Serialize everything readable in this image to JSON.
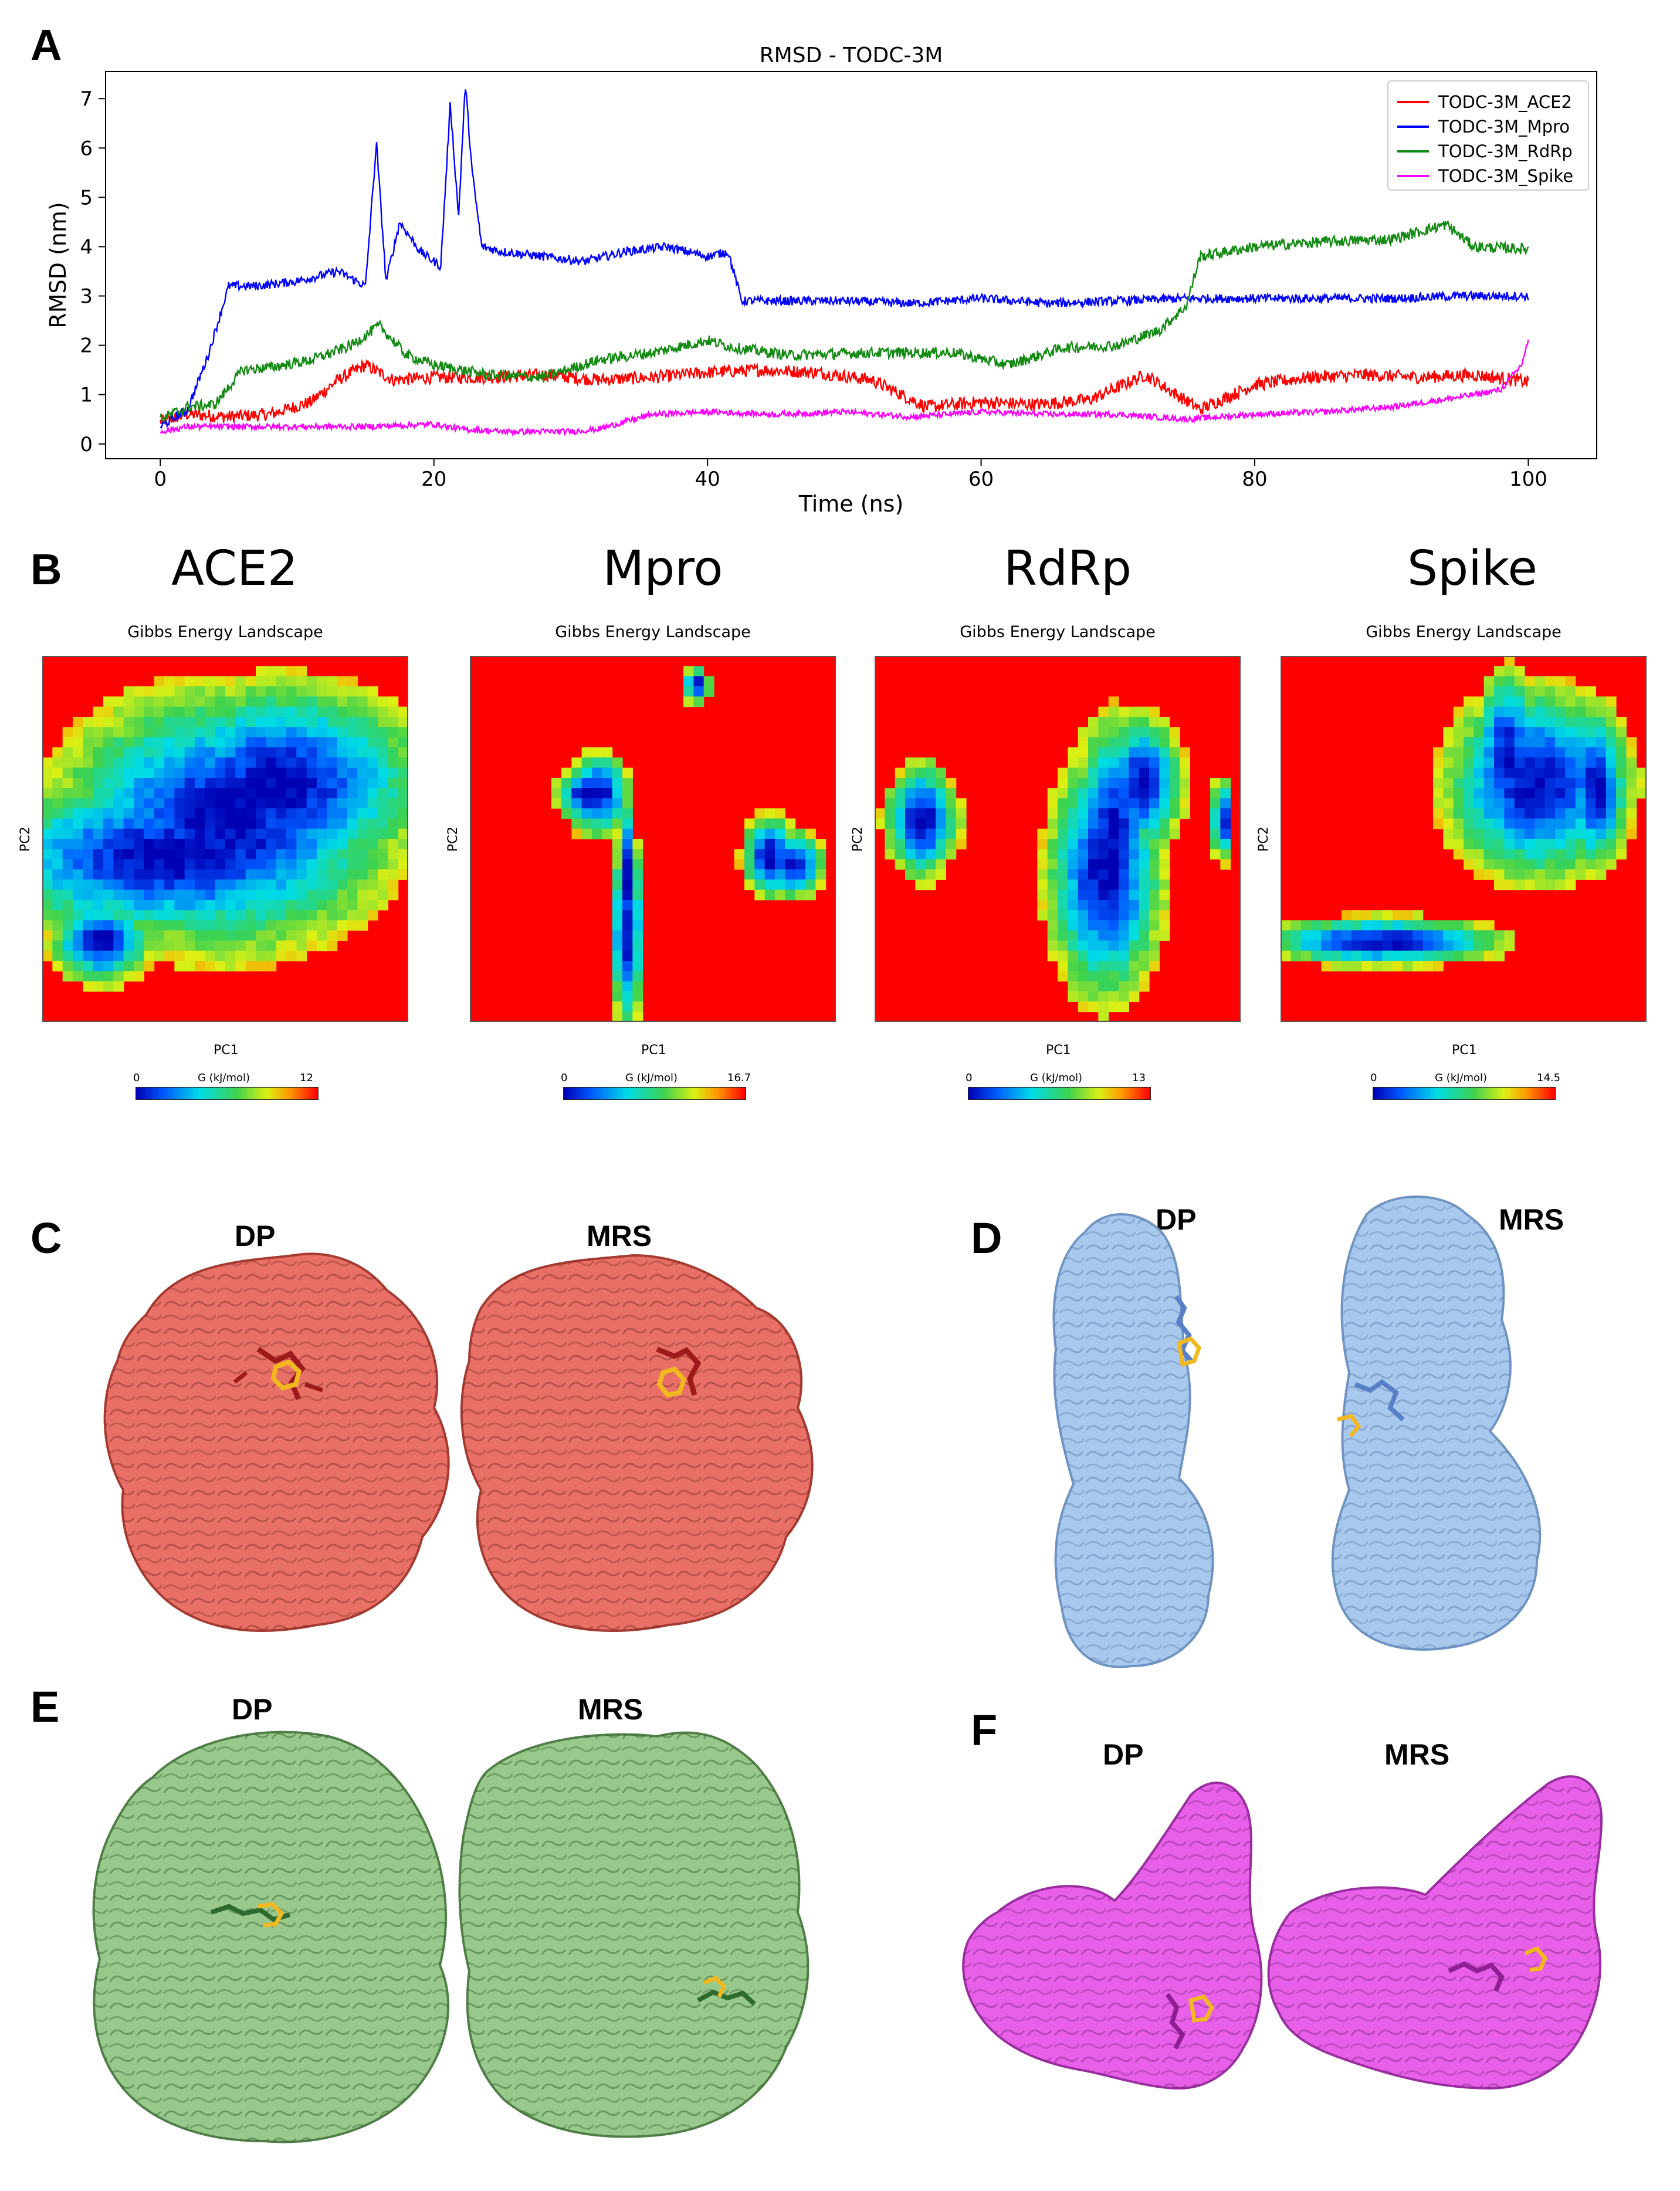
{
  "panels": {
    "A": "A",
    "B": "B",
    "C": "C",
    "D": "D",
    "E": "E",
    "F": "F"
  },
  "chart_data": {
    "type": "line",
    "title": "RMSD - TODC-3M",
    "xlabel": "Time (ns)",
    "ylabel": "RMSD (nm)",
    "xlim": [
      -4,
      105
    ],
    "ylim": [
      -0.3,
      7.55
    ],
    "xticks": [
      "0",
      "20",
      "40",
      "60",
      "80",
      "100"
    ],
    "yticks": [
      "0",
      "1",
      "2",
      "3",
      "4",
      "5",
      "6",
      "7"
    ],
    "legend_position": "top-right",
    "series": [
      {
        "name": "TODC-3M_ACE2",
        "color": "#ff0000",
        "x": [
          0,
          2,
          5,
          8,
          11,
          13,
          15,
          17,
          20,
          24,
          28,
          32,
          36,
          40,
          44,
          48,
          52,
          56,
          60,
          64,
          68,
          72,
          76,
          80,
          84,
          88,
          92,
          96,
          99,
          100
        ],
        "y": [
          0.45,
          0.6,
          0.55,
          0.6,
          0.85,
          1.3,
          1.6,
          1.3,
          1.35,
          1.35,
          1.4,
          1.3,
          1.35,
          1.45,
          1.5,
          1.45,
          1.3,
          0.75,
          0.85,
          0.8,
          0.9,
          1.4,
          0.7,
          1.2,
          1.35,
          1.4,
          1.35,
          1.4,
          1.3,
          1.25
        ]
      },
      {
        "name": "TODC-3M_Mpro",
        "color": "#0000ff",
        "x": [
          0,
          2,
          3.5,
          5,
          7,
          10,
          13,
          15,
          15.8,
          16.5,
          17.5,
          19,
          20.5,
          21.2,
          21.8,
          22.3,
          22.8,
          23.5,
          25,
          28,
          31,
          34,
          37,
          40,
          41.5,
          42.5,
          45,
          50,
          55,
          60,
          65,
          70,
          75,
          80,
          85,
          90,
          95,
          100
        ],
        "y": [
          0.35,
          0.7,
          1.8,
          3.2,
          3.2,
          3.3,
          3.5,
          3.2,
          6.1,
          3.3,
          4.5,
          3.9,
          3.6,
          6.9,
          4.6,
          7.3,
          5.5,
          4.0,
          3.9,
          3.8,
          3.7,
          3.9,
          4.0,
          3.8,
          3.9,
          2.9,
          2.9,
          2.9,
          2.85,
          2.95,
          2.85,
          2.9,
          2.95,
          2.95,
          2.95,
          2.95,
          3.0,
          3.0
        ]
      },
      {
        "name": "TODC-3M_RdRp",
        "color": "#138a13",
        "x": [
          0,
          2,
          4,
          6,
          8,
          11,
          14,
          16,
          18,
          20,
          24,
          28,
          32,
          36,
          40,
          42,
          46,
          52,
          58,
          62,
          66,
          70,
          73,
          75,
          76,
          80,
          85,
          90,
          94,
          96,
          100
        ],
        "y": [
          0.5,
          0.75,
          0.8,
          1.5,
          1.55,
          1.7,
          2.0,
          2.4,
          1.8,
          1.6,
          1.4,
          1.35,
          1.7,
          1.85,
          2.1,
          1.95,
          1.8,
          1.85,
          1.85,
          1.6,
          1.95,
          2.0,
          2.3,
          2.8,
          3.8,
          4.0,
          4.1,
          4.15,
          4.45,
          4.0,
          3.95
        ]
      },
      {
        "name": "TODC-3M_Spike",
        "color": "#ff00ff",
        "x": [
          0,
          2,
          5,
          10,
          15,
          20,
          22,
          25,
          30,
          32,
          36,
          40,
          45,
          50,
          55,
          60,
          65,
          70,
          75,
          80,
          85,
          90,
          95,
          98,
          99.5,
          100
        ],
        "y": [
          0.25,
          0.35,
          0.35,
          0.35,
          0.35,
          0.4,
          0.3,
          0.25,
          0.25,
          0.3,
          0.6,
          0.65,
          0.6,
          0.65,
          0.55,
          0.65,
          0.6,
          0.6,
          0.5,
          0.6,
          0.65,
          0.75,
          0.95,
          1.1,
          1.6,
          2.1
        ]
      }
    ]
  },
  "fel": {
    "panel_titles": [
      "ACE2",
      "Mpro",
      "RdRp",
      "Spike"
    ],
    "plot_title": "Gibbs Energy Landscape",
    "xlabel": "PC1",
    "ylabel": "PC2",
    "colorbar_label": "G (kJ/mol)",
    "colorbar_min": "0",
    "colorbar_max": [
      "12",
      "16.7",
      "13",
      "14.5"
    ]
  },
  "structures": {
    "label_dp": "DP",
    "label_mrs": "MRS",
    "colors": {
      "ace2": "#e87066",
      "mpro": "#a9c8ee",
      "rdrp": "#98c88c",
      "spike": "#e860e8",
      "ligand": "#f2b820"
    }
  }
}
